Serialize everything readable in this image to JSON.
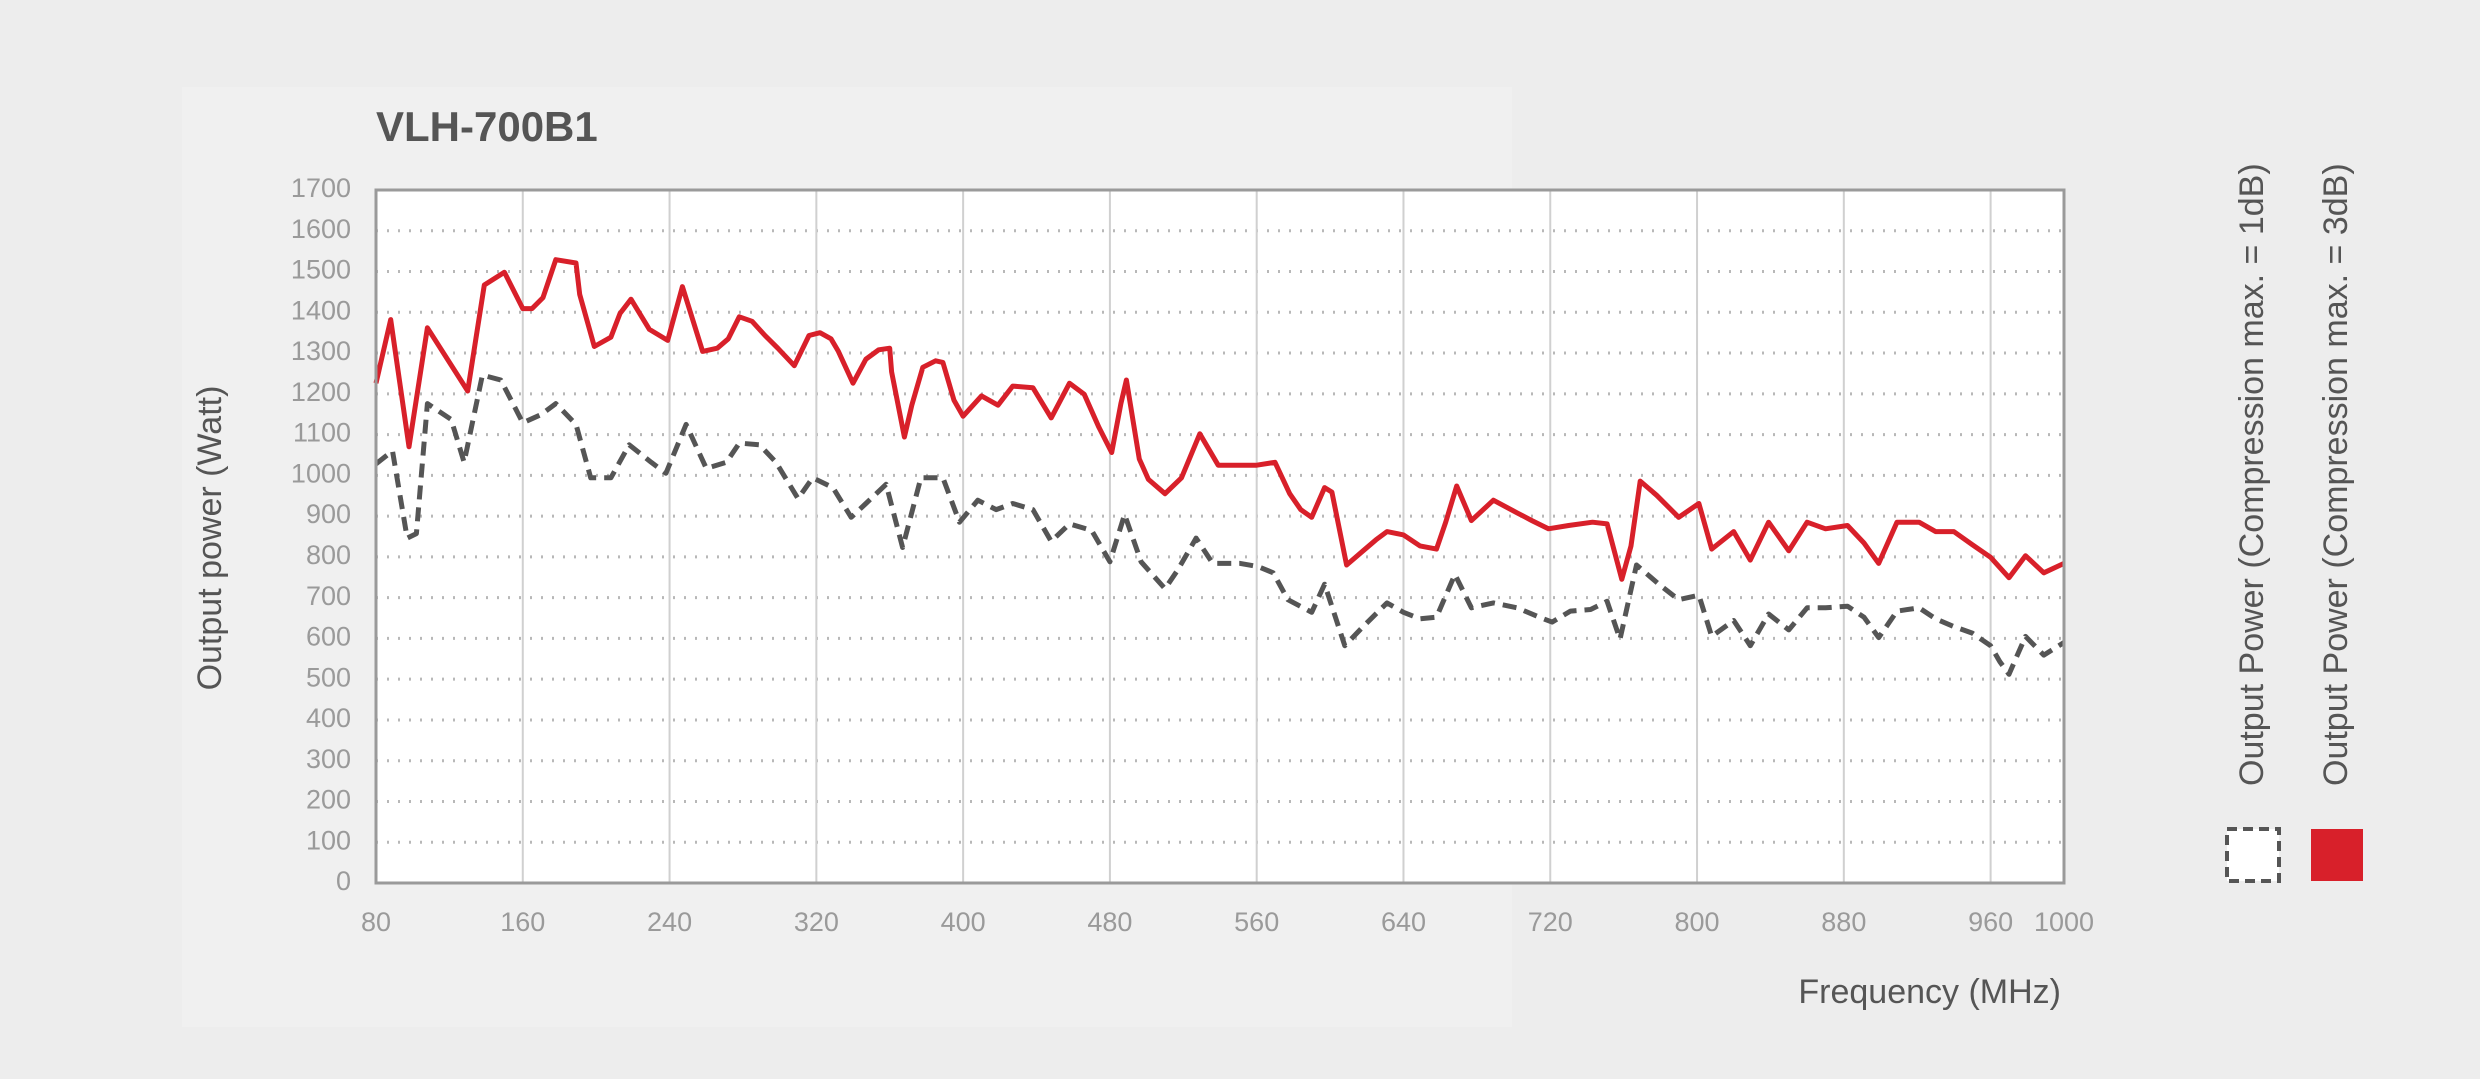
{
  "chart_data": {
    "type": "line",
    "title": "VLH-700B1",
    "x_label": "Frequency (MHz)",
    "y_label": "Output power (Watt)",
    "xlim": [
      80,
      1000
    ],
    "xticks": [
      80,
      160,
      240,
      320,
      400,
      480,
      560,
      640,
      720,
      800,
      880,
      960,
      1000
    ],
    "ylim": [
      0,
      1700
    ],
    "yticks": [
      0,
      100,
      200,
      300,
      400,
      500,
      600,
      700,
      800,
      900,
      1000,
      1100,
      1200,
      1300,
      1400,
      1500,
      1600,
      1700
    ],
    "grid": true,
    "legend": "right",
    "series": [
      {
        "name": "Output Power (Compression max. = 1dB)",
        "color": "#555555",
        "style": "dashed",
        "x": [
          80,
          89,
          97,
          102,
          108,
          121,
          128,
          138,
          148,
          160,
          170,
          178,
          189,
          197,
          208,
          218,
          230,
          238,
          249,
          260,
          271,
          278,
          289,
          298,
          310,
          318,
          329,
          339,
          347,
          358,
          367,
          377,
          389,
          398,
          408,
          418,
          427,
          438,
          448,
          458,
          470,
          480,
          488,
          497,
          510,
          517,
          527,
          536,
          551,
          561,
          569,
          577,
          590,
          597,
          608,
          618,
          631,
          640,
          649,
          658,
          668,
          677,
          689,
          702,
          714,
          721,
          731,
          742,
          751,
          758,
          767,
          780,
          790,
          801,
          808,
          820,
          829,
          839,
          850,
          860,
          870,
          882,
          891,
          899,
          909,
          921,
          930,
          940,
          950,
          960,
          965,
          970,
          979,
          989,
          1000
        ],
        "values": [
          1028,
          1060,
          846,
          857,
          1176,
          1137,
          1032,
          1246,
          1234,
          1129,
          1149,
          1176,
          1125,
          994,
          994,
          1075,
          1032,
          1005,
          1125,
          1017,
          1032,
          1079,
          1075,
          1032,
          943,
          994,
          970,
          897,
          931,
          978,
          823,
          994,
          994,
          885,
          939,
          916,
          931,
          916,
          838,
          881,
          865,
          788,
          904,
          788,
          722,
          768,
          846,
          784,
          784,
          776,
          761,
          695,
          664,
          733,
          582,
          629,
          687,
          664,
          648,
          652,
          757,
          675,
          687,
          675,
          652,
          640,
          667,
          671,
          691,
          598,
          780,
          730,
          695,
          706,
          605,
          644,
          582,
          660,
          621,
          675,
          675,
          679,
          652,
          602,
          667,
          675,
          648,
          629,
          613,
          582,
          543,
          512,
          605,
          559,
          590
        ]
      },
      {
        "name": "Output Power (Compression max. = 3dB)",
        "color": "#d8202a",
        "style": "solid",
        "x": [
          80,
          88,
          98,
          108,
          130,
          139,
          150,
          160,
          165,
          171,
          178,
          189,
          191,
          199,
          208,
          213,
          219,
          229,
          239,
          247,
          258,
          266,
          272,
          278,
          285,
          292,
          299,
          308,
          316,
          322,
          328,
          332,
          340,
          347,
          354,
          360,
          361,
          368,
          372,
          378,
          385,
          389,
          395,
          400,
          410,
          419,
          427,
          438,
          448,
          458,
          466,
          474,
          481,
          486,
          489,
          496,
          501,
          510,
          519,
          529,
          539,
          551,
          560,
          570,
          578,
          584,
          590,
          597,
          601,
          609,
          618,
          625,
          631,
          640,
          649,
          658,
          663,
          669,
          677,
          689,
          702,
          710,
          719,
          730,
          743,
          751,
          759,
          764,
          769,
          778,
          790,
          801,
          808,
          820,
          829,
          839,
          850,
          860,
          870,
          882,
          891,
          899,
          909,
          921,
          930,
          940,
          950,
          960,
          970,
          979,
          989,
          1000
        ],
        "values": [
          1226,
          1382,
          1070,
          1362,
          1207,
          1467,
          1498,
          1409,
          1409,
          1436,
          1529,
          1521,
          1444,
          1316,
          1339,
          1397,
          1432,
          1358,
          1331,
          1463,
          1304,
          1312,
          1335,
          1389,
          1378,
          1343,
          1312,
          1269,
          1343,
          1350,
          1335,
          1304,
          1226,
          1285,
          1308,
          1312,
          1254,
          1094,
          1172,
          1265,
          1281,
          1277,
          1184,
          1145,
          1195,
          1172,
          1219,
          1215,
          1141,
          1226,
          1199,
          1118,
          1056,
          1176,
          1234,
          1040,
          990,
          955,
          994,
          1102,
          1025,
          1025,
          1025,
          1032,
          955,
          916,
          897,
          970,
          959,
          780,
          815,
          842,
          862,
          854,
          827,
          819,
          885,
          974,
          889,
          939,
          908,
          889,
          869,
          877,
          885,
          881,
          745,
          827,
          986,
          951,
          897,
          931,
          819,
          862,
          792,
          885,
          815,
          885,
          869,
          877,
          834,
          784,
          885,
          885,
          862,
          862,
          830,
          799,
          749,
          803,
          761,
          784
        ]
      }
    ]
  }
}
